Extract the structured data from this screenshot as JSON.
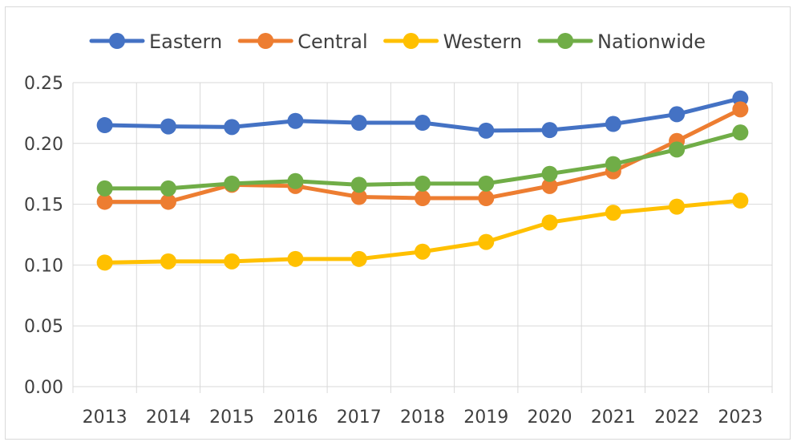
{
  "chart_data": {
    "type": "line",
    "title": "",
    "xlabel": "",
    "ylabel": "",
    "x": [
      "2013",
      "2014",
      "2015",
      "2016",
      "2017",
      "2018",
      "2019",
      "2020",
      "2021",
      "2022",
      "2023"
    ],
    "ylim": [
      0,
      0.25
    ],
    "yticks": [
      "0.00",
      "0.05",
      "0.10",
      "0.15",
      "0.20",
      "0.25"
    ],
    "grid": true,
    "legend_position": "top",
    "series": [
      {
        "name": "Eastern",
        "color": "#4472C4",
        "values": [
          0.215,
          0.214,
          0.2135,
          0.2185,
          0.217,
          0.217,
          0.2105,
          0.211,
          0.216,
          0.224,
          0.237
        ]
      },
      {
        "name": "Central",
        "color": "#ED7D31",
        "values": [
          0.152,
          0.152,
          0.166,
          0.165,
          0.156,
          0.155,
          0.155,
          0.165,
          0.177,
          0.202,
          0.228
        ]
      },
      {
        "name": "Western",
        "color": "#FFC000",
        "values": [
          0.102,
          0.103,
          0.103,
          0.105,
          0.105,
          0.111,
          0.119,
          0.135,
          0.143,
          0.148,
          0.153
        ]
      },
      {
        "name": "Nationwide",
        "color": "#70AD47",
        "values": [
          0.163,
          0.163,
          0.167,
          0.169,
          0.166,
          0.167,
          0.167,
          0.175,
          0.183,
          0.195,
          0.209
        ]
      }
    ]
  }
}
